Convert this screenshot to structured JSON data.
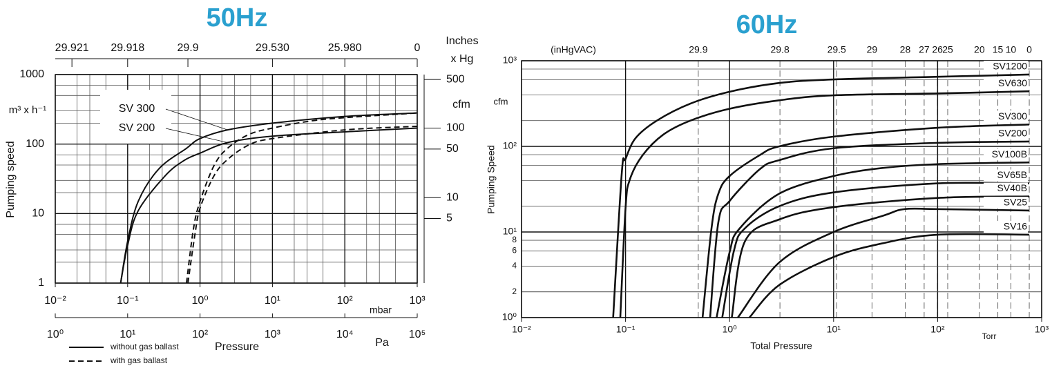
{
  "chart_data": [
    {
      "type": "line",
      "title": "50Hz",
      "title_color": "#2aa0cf",
      "xscale": "log",
      "yscale": "log",
      "xlim": [
        0.01,
        1000
      ],
      "xticks": [
        {
          "value": 0.01,
          "label": "10⁻²"
        },
        {
          "value": 0.1,
          "label": "10⁻¹"
        },
        {
          "value": 1,
          "label": "10⁰"
        },
        {
          "value": 10,
          "label": "10¹"
        },
        {
          "value": 100,
          "label": "10²"
        },
        {
          "value": 1000,
          "label": "10³"
        }
      ],
      "xunit": "mbar",
      "xlabel": "Pressure",
      "xlim_pa": [
        1,
        100000
      ],
      "xticks_pa": [
        {
          "value": 1,
          "label": "10⁰"
        },
        {
          "value": 10,
          "label": "10¹"
        },
        {
          "value": 100,
          "label": "10²"
        },
        {
          "value": 1000,
          "label": "10³"
        },
        {
          "value": 10000,
          "label": "10⁴"
        },
        {
          "value": 100000,
          "label": "10⁵"
        }
      ],
      "xunit_pa": "Pa",
      "xticks_top": [
        {
          "value": 0.017,
          "label": "29.921"
        },
        {
          "value": 0.1,
          "label": "29.918"
        },
        {
          "value": 0.68,
          "label": "29.9"
        },
        {
          "value": 10,
          "label": "29.530"
        },
        {
          "value": 100,
          "label": "25.980"
        },
        {
          "value": 1000,
          "label": "0"
        }
      ],
      "xlabel_top": [
        "Inches",
        "x Hg"
      ],
      "ylim": [
        1,
        1000
      ],
      "yticks": [
        1,
        10,
        100,
        1000
      ],
      "ylabel": "Pumping speed",
      "yunit": "m³ x h⁻¹",
      "y2lim": [
        0.589,
        589
      ],
      "y2ticks": [
        5,
        10,
        50,
        100,
        500
      ],
      "y2label": "cfm",
      "grid": true,
      "minor_grid_x": [
        2,
        3,
        5
      ],
      "minor_grid_y": [
        2,
        3,
        5,
        7
      ],
      "legend": {
        "solid": "without gas ballast",
        "dashed": "with gas ballast"
      },
      "series": [
        {
          "name": "SV 300",
          "dashed": false,
          "color": "#111111",
          "x": [
            0.08,
            0.1,
            0.14,
            0.27,
            0.65,
            1,
            2.4,
            10,
            100,
            1000
          ],
          "values": [
            1,
            4,
            15,
            44,
            87,
            120,
            160,
            200,
            250,
            280
          ]
        },
        {
          "name": "SV 200",
          "dashed": false,
          "color": "#111111",
          "x": [
            0.08,
            0.1,
            0.14,
            0.33,
            0.6,
            1,
            2.4,
            10,
            100,
            1000
          ],
          "values": [
            1,
            3.5,
            11,
            35,
            58,
            74,
            105,
            130,
            150,
            170
          ]
        },
        {
          "dashed": true,
          "color": "#111111",
          "x": [
            0.65,
            0.81,
            1,
            1.56,
            2.4,
            4.7,
            10,
            34,
            100,
            1000
          ],
          "values": [
            1,
            6,
            15,
            49,
            87,
            137,
            170,
            215,
            240,
            280
          ]
        },
        {
          "dashed": true,
          "color": "#111111",
          "x": [
            0.68,
            0.85,
            1,
            1.56,
            2.4,
            4.7,
            10,
            100,
            1000
          ],
          "values": [
            1,
            5,
            12,
            35,
            60,
            97,
            120,
            160,
            180
          ]
        }
      ]
    },
    {
      "type": "line",
      "title": "60Hz",
      "title_color": "#2aa0cf",
      "xscale": "log",
      "yscale": "log",
      "xlim": [
        0.01,
        1000
      ],
      "xticks": [
        {
          "value": 0.01,
          "label": "10⁻²"
        },
        {
          "value": 0.1,
          "label": "10⁻¹"
        },
        {
          "value": 1,
          "label": "10⁰"
        },
        {
          "value": 10,
          "label": "10¹"
        },
        {
          "value": 100,
          "label": "10²"
        },
        {
          "value": 1000,
          "label": "10³"
        }
      ],
      "xlabel": "Total Pressure",
      "xunit": "Torr",
      "xticks_top": [
        {
          "value": 0.5,
          "label": "29.9"
        },
        {
          "value": 3.05,
          "label": "29.8"
        },
        {
          "value": 10.7,
          "label": "29.5"
        },
        {
          "value": 23.4,
          "label": "29"
        },
        {
          "value": 48.8,
          "label": "28"
        },
        {
          "value": 74.2,
          "label": "27"
        },
        {
          "value": 99.6,
          "label": "26"
        },
        {
          "value": 125,
          "label": "25"
        },
        {
          "value": 252,
          "label": "20"
        },
        {
          "value": 379,
          "label": "15"
        },
        {
          "value": 506,
          "label": "10"
        },
        {
          "value": 760,
          "label": "0"
        }
      ],
      "xlabel_top": "(inHgVAC)",
      "ylim": [
        1,
        1000
      ],
      "yticks": [
        {
          "value": 1,
          "label": "10⁰"
        },
        2,
        4,
        6,
        8,
        {
          "value": 10,
          "label": "10¹"
        },
        {
          "value": 100,
          "label": "10²"
        },
        {
          "value": 1000,
          "label": "10³"
        }
      ],
      "ylabel": "Pumping Speed",
      "yunit": "cfm",
      "grid": true,
      "minor_grid_y": [
        2,
        4,
        6,
        8
      ],
      "series": [
        {
          "name": "SV1200",
          "color": "#111111",
          "x": [
            0.076,
            0.092,
            0.1,
            0.125,
            0.2,
            0.42,
            1,
            3,
            10,
            100,
            760
          ],
          "values": [
            1,
            49,
            71,
            125,
            200,
            316,
            435,
            550,
            605,
            650,
            690
          ]
        },
        {
          "name": "SV630",
          "color": "#111111",
          "x": [
            0.089,
            0.1,
            0.11,
            0.145,
            0.23,
            0.42,
            1,
            3,
            10,
            100,
            760
          ],
          "values": [
            1,
            19,
            41,
            78,
            137,
            200,
            275,
            345,
            395,
            415,
            440
          ]
        },
        {
          "name": "SV300",
          "color": "#111111",
          "x": [
            0.55,
            0.67,
            0.78,
            1,
            1.95,
            3,
            10,
            100,
            760
          ],
          "values": [
            1,
            11,
            28,
            45,
            79,
            100,
            130,
            165,
            180
          ]
        },
        {
          "name": "SV200",
          "color": "#111111",
          "x": [
            0.65,
            0.78,
            1,
            1.95,
            3,
            10,
            100,
            760
          ],
          "values": [
            1,
            13,
            23,
            54,
            69,
            95,
            110,
            114
          ]
        },
        {
          "name": "SV100B",
          "color": "#111111",
          "x": [
            0.75,
            1,
            1.25,
            3,
            10,
            30,
            100,
            760
          ],
          "values": [
            1,
            5.8,
            11,
            28,
            45,
            56,
            62,
            65
          ]
        },
        {
          "name": "SV65B",
          "color": "#111111",
          "x": [
            0.85,
            1.1,
            1.4,
            3,
            10,
            100,
            760
          ],
          "values": [
            1,
            6,
            11,
            20,
            29,
            37,
            37
          ]
        },
        {
          "name": "SV40B",
          "color": "#111111",
          "x": [
            1.05,
            1.4,
            3,
            10,
            100,
            760
          ],
          "values": [
            1,
            7.7,
            14,
            19.5,
            25,
            26
          ]
        },
        {
          "name": "SV25",
          "color": "#111111",
          "x": [
            1.2,
            3,
            10,
            30,
            48,
            100,
            760
          ],
          "values": [
            1,
            4.4,
            10,
            15.5,
            18.5,
            18.5,
            17.8
          ]
        },
        {
          "name": "SV16",
          "color": "#111111",
          "x": [
            1.55,
            3,
            10,
            30,
            100,
            760
          ],
          "values": [
            1,
            2.4,
            5.1,
            7.4,
            9.3,
            9.3
          ]
        }
      ]
    }
  ]
}
